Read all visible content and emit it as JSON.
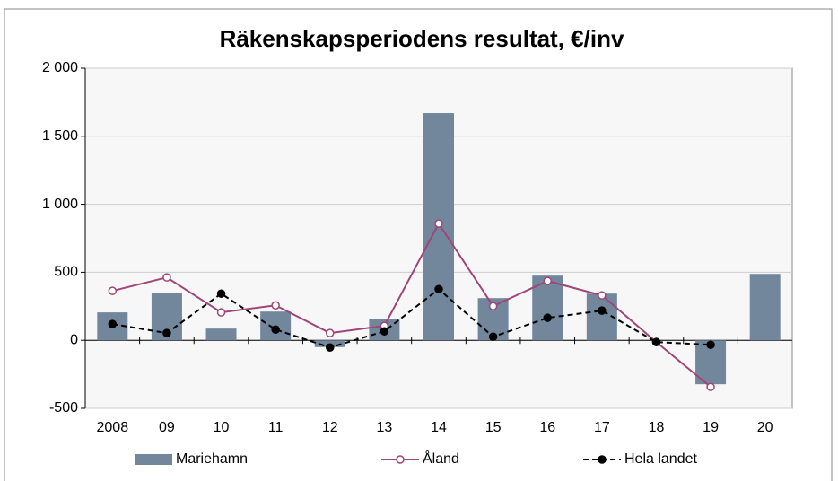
{
  "chart_data": {
    "type": "bar",
    "title": "Räkenskapsperiodens resultat, €/inv",
    "categories": [
      "2008",
      "09",
      "10",
      "11",
      "12",
      "13",
      "14",
      "15",
      "16",
      "17",
      "18",
      "19",
      "20"
    ],
    "series": [
      {
        "name": "Mariehamn",
        "type": "bar",
        "color": "#72869c",
        "values": [
          205,
          350,
          86,
          211,
          -50,
          158,
          1670,
          310,
          475,
          343,
          0,
          -323,
          488
        ]
      },
      {
        "name": "Åland",
        "type": "line",
        "color": "#a0457a",
        "marker": "open",
        "values": [
          363,
          462,
          205,
          257,
          53,
          106,
          858,
          251,
          436,
          330,
          -13,
          -343,
          null
        ]
      },
      {
        "name": "Hela landet",
        "type": "line",
        "color": "#000000",
        "marker": "filled",
        "dashed": true,
        "values": [
          119,
          53,
          343,
          79,
          -53,
          66,
          376,
          26,
          165,
          218,
          -13,
          -33,
          null
        ]
      }
    ],
    "ylim": [
      -500,
      2000
    ],
    "yticks": [
      -500,
      0,
      500,
      {
        "value": 1000,
        "label": "1 000"
      },
      {
        "value": 1500,
        "label": "1 500"
      },
      {
        "value": 2000,
        "label": "2 000"
      }
    ],
    "grid": true,
    "legend": "bottom"
  }
}
